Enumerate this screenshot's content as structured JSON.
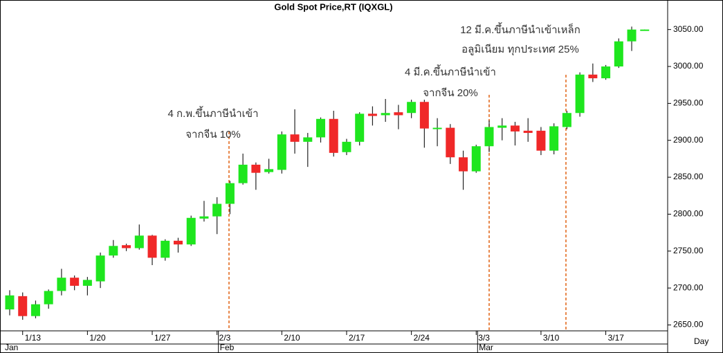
{
  "chart_data": {
    "type": "candlestick",
    "title": "Gold Spot Price,RT (IQXGL)",
    "x_label": "Day",
    "categories": [
      null,
      "1/13",
      null,
      null,
      null,
      null,
      "1/20",
      null,
      null,
      null,
      null,
      "1/27",
      null,
      null,
      null,
      null,
      "2/3",
      null,
      null,
      null,
      null,
      "2/10",
      null,
      null,
      null,
      null,
      "2/17",
      null,
      null,
      null,
      null,
      "2/24",
      null,
      null,
      null,
      null,
      "3/3",
      null,
      null,
      null,
      null,
      "3/10",
      null,
      null,
      null,
      null,
      "3/17",
      null,
      null,
      null
    ],
    "month_labels": [
      "Jan",
      null,
      null,
      null,
      null,
      null,
      null,
      null,
      null,
      null,
      null,
      null,
      null,
      null,
      null,
      null,
      "Feb",
      null,
      null,
      null,
      null,
      null,
      null,
      null,
      null,
      null,
      null,
      null,
      null,
      null,
      null,
      null,
      null,
      null,
      null,
      null,
      "Mar",
      null,
      null,
      null,
      null,
      null,
      null,
      null,
      null,
      null,
      null,
      null,
      null,
      null
    ],
    "open": [
      2671,
      2689,
      2662,
      2678,
      2696,
      2714,
      2703,
      2709,
      2744,
      2758,
      2754,
      2771,
      2741,
      2764,
      2759,
      2794,
      2797,
      2814,
      2842,
      2867,
      2857,
      2860,
      2908,
      2898,
      2904,
      2929,
      2884,
      2898,
      2936,
      2934,
      2938,
      2937,
      2952,
      2916,
      2917,
      2877,
      2858,
      2892,
      2917,
      2920,
      2913,
      2913,
      2886,
      2918,
      2937,
      2989,
      2984,
      3000,
      3034,
      3049
    ],
    "high": [
      2697,
      2694,
      2683,
      2698,
      2726,
      2717,
      2715,
      2748,
      2765,
      2760,
      2786,
      2772,
      2766,
      2768,
      2798,
      2818,
      2823,
      2845,
      2882,
      2870,
      2875,
      2912,
      2942,
      2910,
      2931,
      2940,
      2902,
      2938,
      2946,
      2956,
      2948,
      2955,
      2955,
      2930,
      2922,
      2886,
      2894,
      2927,
      2930,
      2925,
      2930,
      2918,
      2923,
      2940,
      2992,
      3004,
      3002,
      3038,
      3054,
      3050
    ],
    "low": [
      2663,
      2657,
      2659,
      2672,
      2690,
      2697,
      2690,
      2700,
      2741,
      2750,
      2752,
      2731,
      2737,
      2748,
      2757,
      2790,
      2773,
      2800,
      2840,
      2833,
      2855,
      2855,
      2882,
      2864,
      2897,
      2878,
      2880,
      2893,
      2920,
      2925,
      2915,
      2930,
      2890,
      2892,
      2868,
      2833,
      2856,
      2884,
      2900,
      2893,
      2898,
      2880,
      2881,
      2915,
      2932,
      2979,
      2982,
      2998,
      3021,
      3049
    ],
    "close": [
      2690,
      2662,
      2678,
      2696,
      2714,
      2703,
      2711,
      2744,
      2757,
      2754,
      2771,
      2741,
      2764,
      2759,
      2795,
      2797,
      2814,
      2842,
      2867,
      2856,
      2861,
      2908,
      2898,
      2904,
      2929,
      2883,
      2898,
      2936,
      2933,
      2937,
      2934,
      2952,
      2916,
      2917,
      2877,
      2858,
      2892,
      2918,
      2920,
      2912,
      2910,
      2886,
      2919,
      2937,
      2989,
      2984,
      3000,
      3034,
      3050,
      3050
    ],
    "up_color": "#1ee61e",
    "down_color": "#f02828",
    "ylim": [
      2642,
      3090
    ],
    "yticks": [
      {
        "value": 2650,
        "label": "2650.00"
      },
      {
        "value": 2700,
        "label": "2700.00"
      },
      {
        "value": 2750,
        "label": "2750.00"
      },
      {
        "value": 2800,
        "label": "2800.00"
      },
      {
        "value": 2850,
        "label": "2850.00"
      },
      {
        "value": 2900,
        "label": "2900.00"
      },
      {
        "value": 2950,
        "label": "2950.00"
      },
      {
        "value": 3000,
        "label": "3000.00"
      },
      {
        "value": 3050,
        "label": "3050.00"
      }
    ],
    "annotations": [
      {
        "lines": [
          "4 ก.พ.ขึ้นภาษีนำเข้า",
          "จากจีน 10%"
        ]
      },
      {
        "lines": [
          "4 มี.ค.ขึ้นภาษีนำเข้า",
          "จากจีน 20%"
        ]
      },
      {
        "lines": [
          "12 มี.ค.ขึ้นภาษีนำเข้าเหล็ก",
          "อลูมิเนียม ทุกประเทศ 25%"
        ]
      }
    ]
  }
}
